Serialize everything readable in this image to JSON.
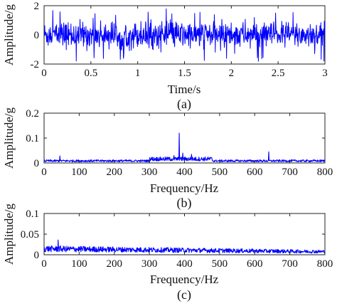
{
  "chart_data": [
    {
      "type": "line",
      "caption": "(a)",
      "xlabel": "Time/s",
      "ylabel": "Amplitude/g",
      "xlim": [
        0,
        3
      ],
      "ylim": [
        -2,
        2
      ],
      "xticks": [
        "0",
        "0.5",
        "1",
        "1.5",
        "2",
        "2.5",
        "3"
      ],
      "yticks": [
        "-2",
        "0",
        "2"
      ],
      "series_color": "#0000ff",
      "signal": {
        "x_start": 0,
        "x_end": 3,
        "n_points": 900,
        "typical_amplitude": 0.6,
        "peak_amplitude": 1.8
      }
    },
    {
      "type": "line",
      "caption": "(b)",
      "xlabel": "Frequency/Hz",
      "ylabel": "Amplitude/g",
      "xlim": [
        0,
        800
      ],
      "ylim": [
        0,
        0.2
      ],
      "xticks": [
        "0",
        "100",
        "200",
        "300",
        "400",
        "500",
        "600",
        "700",
        "800"
      ],
      "yticks": [
        "0",
        "0.1",
        "0.2"
      ],
      "series_color": "#0000ff",
      "baseline": 0.008,
      "peaks": [
        {
          "x": 45,
          "y": 0.028
        },
        {
          "x": 370,
          "y": 0.03
        },
        {
          "x": 385,
          "y": 0.12
        },
        {
          "x": 395,
          "y": 0.04
        },
        {
          "x": 420,
          "y": 0.035
        },
        {
          "x": 640,
          "y": 0.045
        }
      ]
    },
    {
      "type": "line",
      "caption": "(c)",
      "xlabel": "Frequency/Hz",
      "ylabel": "Amplitude/g",
      "xlim": [
        0,
        800
      ],
      "ylim": [
        0,
        0.1
      ],
      "xticks": [
        "0",
        "100",
        "200",
        "300",
        "400",
        "500",
        "600",
        "700",
        "800"
      ],
      "yticks": [
        "0",
        "0.05",
        "0.1"
      ],
      "series_color": "#0000ff",
      "baseline": 0.012,
      "peaks": [
        {
          "x": 40,
          "y": 0.036
        },
        {
          "x": 55,
          "y": 0.02
        },
        {
          "x": 100,
          "y": 0.016
        }
      ]
    }
  ]
}
